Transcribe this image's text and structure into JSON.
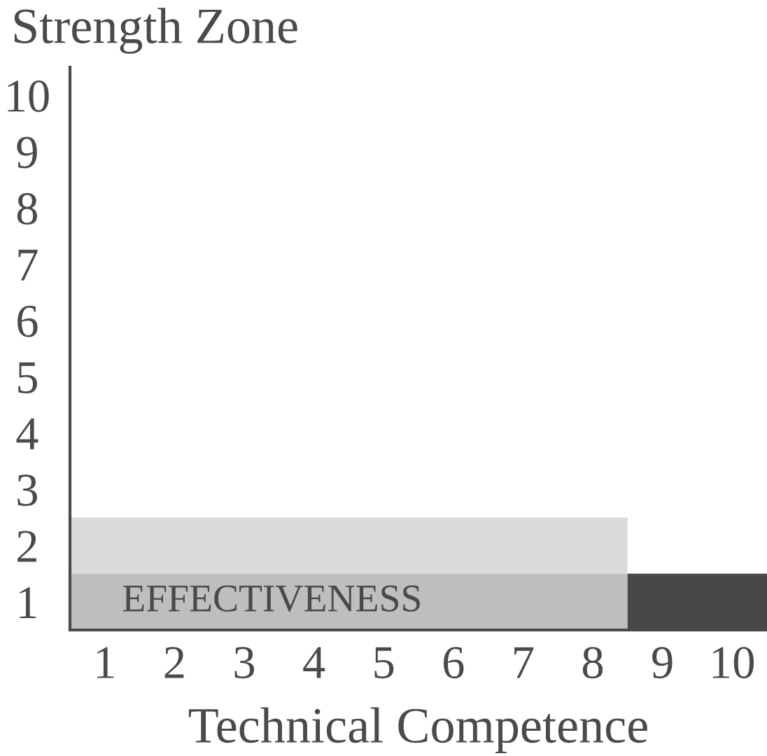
{
  "chart_data": {
    "type": "bar",
    "orientation": "horizontal",
    "stacked": true,
    "ylabel": "Strength Zone",
    "xlabel": "Technical Competence",
    "categories": [
      "10",
      "9",
      "8",
      "7",
      "6",
      "5",
      "4",
      "3",
      "2",
      "1"
    ],
    "series": [
      {
        "colors": [
          null,
          null,
          null,
          null,
          null,
          null,
          null,
          null,
          "#d9dadc",
          "#bdbec0"
        ],
        "values": [
          null,
          null,
          null,
          null,
          null,
          null,
          null,
          null,
          8.5,
          8.5
        ]
      },
      {
        "color": "#48484a",
        "values": [
          null,
          null,
          null,
          null,
          null,
          null,
          null,
          null,
          null,
          2
        ]
      }
    ],
    "xlim": [
      0.5,
      10.5
    ],
    "xticks": [
      1,
      2,
      3,
      4,
      5,
      6,
      7,
      8,
      9,
      10
    ],
    "grid": false,
    "legend": false,
    "annotations": [
      "EFFECTIVENESS"
    ]
  }
}
